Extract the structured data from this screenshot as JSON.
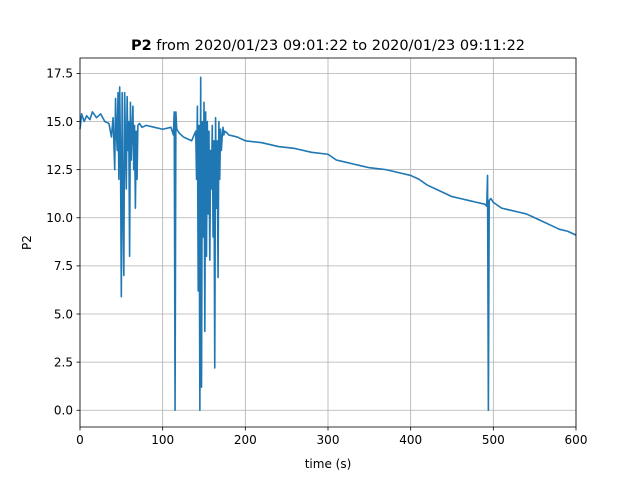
{
  "chart_data": {
    "type": "line",
    "title_bold": "P2",
    "title_rest": " from 2020/01/23 09:01:22 to 2020/01/23 09:11:22",
    "xlabel": "time (s)",
    "ylabel": "P2",
    "xlim": [
      0,
      600
    ],
    "ylim": [
      -0.87,
      18.3
    ],
    "grid": true,
    "x_ticks": [
      0,
      100,
      200,
      300,
      400,
      500,
      600
    ],
    "x_tick_labels": [
      "0",
      "100",
      "200",
      "300",
      "400",
      "500",
      "600"
    ],
    "y_ticks": [
      0,
      2.5,
      5,
      7.5,
      10,
      12.5,
      15,
      17.5
    ],
    "y_tick_labels": [
      "0.0",
      "2.5",
      "5.0",
      "7.5",
      "10.0",
      "12.5",
      "15.0",
      "17.5"
    ],
    "line_color": "#1f77b4",
    "series": [
      {
        "x": [
          0,
          2,
          5,
          8,
          12,
          15,
          20,
          25,
          30,
          35,
          38,
          40,
          42,
          43,
          44,
          45,
          46,
          47,
          48,
          49,
          50,
          51,
          52,
          53,
          54,
          55,
          56,
          57,
          58,
          59,
          60,
          61,
          62,
          63,
          64,
          65,
          66,
          67,
          68,
          69,
          70,
          72,
          75,
          80,
          90,
          100,
          110,
          113,
          114,
          115,
          116,
          117,
          120,
          125,
          130,
          135,
          140,
          141,
          142,
          143,
          144,
          145,
          146,
          147,
          148,
          149,
          150,
          151,
          152,
          153,
          154,
          155,
          156,
          157,
          158,
          159,
          160,
          161,
          162,
          163,
          164,
          165,
          166,
          167,
          168,
          169,
          170,
          171,
          172,
          173,
          174,
          175,
          178,
          180,
          190,
          200,
          220,
          240,
          260,
          280,
          300,
          310,
          320,
          330,
          340,
          350,
          370,
          390,
          400,
          410,
          420,
          430,
          440,
          450,
          460,
          470,
          480,
          490,
          492,
          493,
          494,
          495,
          497,
          500,
          510,
          520,
          530,
          540,
          550,
          560,
          570,
          580,
          590,
          600
        ],
        "y": [
          14.6,
          15.4,
          15.0,
          15.3,
          15.1,
          15.5,
          15.2,
          15.4,
          15.0,
          14.9,
          14.2,
          15.2,
          12.5,
          16.2,
          14.5,
          13.5,
          16.5,
          12.0,
          16.8,
          13.2,
          5.9,
          16.5,
          10.5,
          7.0,
          16.5,
          14.0,
          11.5,
          16.3,
          13.5,
          15.0,
          8.0,
          16.0,
          13.0,
          14.5,
          15.8,
          12.5,
          14.8,
          10.5,
          14.5,
          12.0,
          14.8,
          14.9,
          14.7,
          14.8,
          14.7,
          14.6,
          14.7,
          14.3,
          15.5,
          0.0,
          15.5,
          14.6,
          14.4,
          14.2,
          14.1,
          14.0,
          14.5,
          12.0,
          15.8,
          6.2,
          14.8,
          0.0,
          17.3,
          1.2,
          15.0,
          9.0,
          16.0,
          4.1,
          15.5,
          8.0,
          15.0,
          10.2,
          14.5,
          7.8,
          13.5,
          11.5,
          14.8,
          9.0,
          14.0,
          2.2,
          15.2,
          10.5,
          14.0,
          6.9,
          15.0,
          12.0,
          14.6,
          13.5,
          14.2,
          14.7,
          14.3,
          14.5,
          14.4,
          14.3,
          14.2,
          14.0,
          13.9,
          13.7,
          13.6,
          13.4,
          13.3,
          13.0,
          12.9,
          12.8,
          12.7,
          12.6,
          12.5,
          12.3,
          12.2,
          12.0,
          11.7,
          11.5,
          11.3,
          11.1,
          11.0,
          10.9,
          10.8,
          10.7,
          10.6,
          12.2,
          0.0,
          10.9,
          11.0,
          10.8,
          10.5,
          10.4,
          10.3,
          10.2,
          10.0,
          9.8,
          9.6,
          9.4,
          9.3,
          9.1
        ]
      }
    ]
  }
}
